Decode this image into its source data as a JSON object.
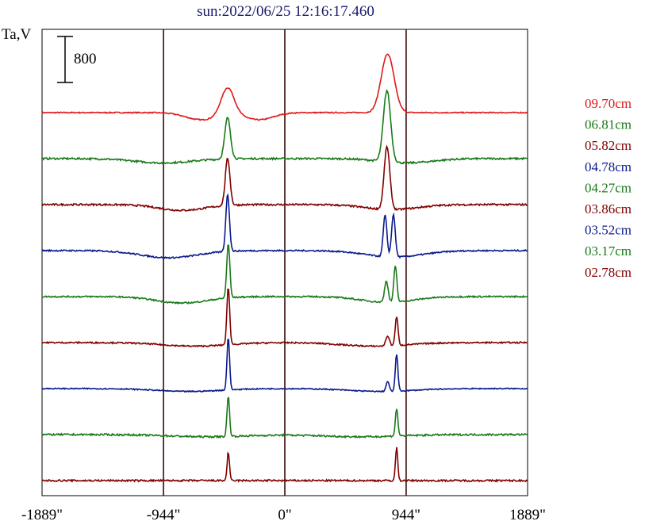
{
  "chart_data": {
    "type": "line",
    "title": "sun:2022/06/25 12:16:17.460",
    "ylabel": "Ta,V",
    "scale_bar_label": "800",
    "scale_bar_value": 800,
    "x_ticks": [
      "-1889\"",
      "-944\"",
      "0\"",
      "944\"",
      "1889\""
    ],
    "xlim": [
      -1889,
      1889
    ],
    "vertical_lines": [
      -944,
      0,
      944
    ],
    "colors": {
      "title": "#1a1a6e",
      "red": "#e01818",
      "green": "#1a7a1a",
      "maroon": "#800000",
      "blue": "#0a1a8c"
    },
    "series": [
      {
        "name": "09.70cm",
        "color": "#e01818",
        "baseline": 0,
        "peaks": [
          [
            -445,
            38,
            50
          ],
          [
            800,
            82,
            50
          ]
        ],
        "dips": [
          [
            -650,
            10,
            120
          ],
          [
            -200,
            10,
            110
          ]
        ],
        "noise": 1.5
      },
      {
        "name": "06.81cm",
        "color": "#1a7a1a",
        "baseline": 0,
        "peaks": [
          [
            -445,
            58,
            22
          ],
          [
            795,
            100,
            28
          ]
        ],
        "dips": [
          [
            -944,
            6,
            220
          ],
          [
            944,
            6,
            200
          ]
        ],
        "noise": 2.5
      },
      {
        "name": "05.82cm",
        "color": "#800000",
        "baseline": 0,
        "peaks": [
          [
            -445,
            66,
            18
          ],
          [
            795,
            88,
            22
          ]
        ],
        "dips": [
          [
            -800,
            8,
            180
          ],
          [
            830,
            7,
            200
          ]
        ],
        "noise": 2.5
      },
      {
        "name": "04.78cm",
        "color": "#0a1a8c",
        "baseline": 0,
        "peaks": [
          [
            -445,
            80,
            14
          ],
          [
            780,
            58,
            14
          ],
          [
            845,
            60,
            14
          ]
        ],
        "dips": [
          [
            -900,
            10,
            220
          ],
          [
            850,
            9,
            220
          ]
        ],
        "noise": 2
      },
      {
        "name": "04.27cm",
        "color": "#1a7a1a",
        "baseline": 0,
        "peaks": [
          [
            -440,
            76,
            12
          ],
          [
            790,
            30,
            14
          ],
          [
            860,
            50,
            12
          ]
        ],
        "dips": [
          [
            -800,
            9,
            200
          ],
          [
            800,
            8,
            200
          ]
        ],
        "noise": 2
      },
      {
        "name": "03.86cm",
        "color": "#800000",
        "baseline": 0,
        "peaks": [
          [
            -440,
            80,
            11
          ],
          [
            800,
            14,
            14
          ],
          [
            870,
            40,
            11
          ]
        ],
        "dips": [
          [
            -700,
            5,
            250
          ],
          [
            700,
            5,
            250
          ]
        ],
        "noise": 2
      },
      {
        "name": "03.52cm",
        "color": "#0a1a8c",
        "baseline": 0,
        "peaks": [
          [
            -440,
            74,
            10
          ],
          [
            800,
            14,
            12
          ],
          [
            870,
            52,
            10
          ]
        ],
        "dips": [
          [
            -750,
            4,
            250
          ],
          [
            750,
            4,
            250
          ]
        ],
        "noise": 1.5
      },
      {
        "name": "03.17cm",
        "color": "#1a7a1a",
        "baseline": 0,
        "peaks": [
          [
            -440,
            56,
            10
          ],
          [
            870,
            38,
            10
          ]
        ],
        "dips": [
          [
            -600,
            3,
            300
          ],
          [
            600,
            3,
            300
          ]
        ],
        "noise": 2.5
      },
      {
        "name": "02.78cm",
        "color": "#800000",
        "baseline": 0,
        "peaks": [
          [
            -440,
            40,
            9
          ],
          [
            870,
            46,
            9
          ]
        ],
        "dips": [],
        "noise": 2.5
      }
    ]
  }
}
